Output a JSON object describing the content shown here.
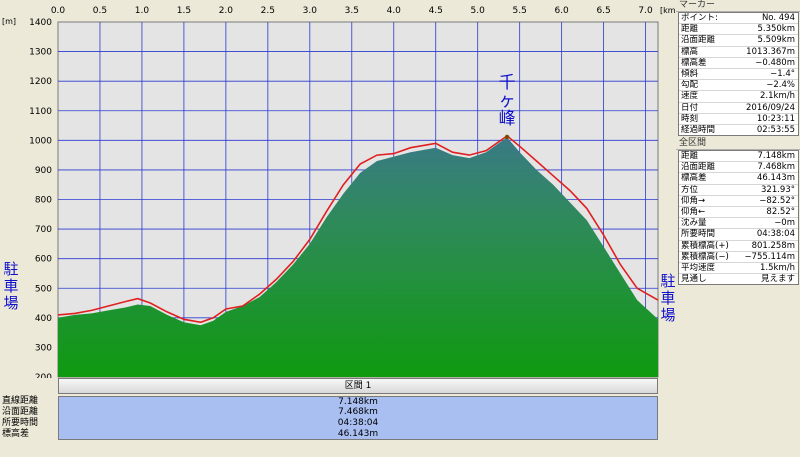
{
  "chart_data": {
    "type": "area",
    "x_unit": "[km]",
    "y_unit": "[m]",
    "xlim": [
      0,
      7.148
    ],
    "ylim": [
      200,
      1400
    ],
    "x_ticks": [
      "0.0",
      "0.5",
      "1.0",
      "1.5",
      "2.0",
      "2.5",
      "3.0",
      "3.5",
      "4.0",
      "4.5",
      "5.0",
      "5.5",
      "6.0",
      "6.5",
      "7.0"
    ],
    "x_tick_values": [
      0,
      0.5,
      1.0,
      1.5,
      2.0,
      2.5,
      3.0,
      3.5,
      4.0,
      4.5,
      5.0,
      5.5,
      6.0,
      6.5,
      7.0
    ],
    "y_ticks": [
      "200",
      "300",
      "400",
      "500",
      "600",
      "700",
      "800",
      "900",
      "1000",
      "1100",
      "1200",
      "1300",
      "1400"
    ],
    "y_tick_values": [
      200,
      300,
      400,
      500,
      600,
      700,
      800,
      900,
      1000,
      1100,
      1200,
      1300,
      1400
    ],
    "grid": true,
    "series": [
      {
        "role": "terrain",
        "x": [
          0,
          0.2,
          0.4,
          0.6,
          0.8,
          0.95,
          1.1,
          1.3,
          1.5,
          1.7,
          1.85,
          2.0,
          2.2,
          2.4,
          2.6,
          2.8,
          3.0,
          3.2,
          3.4,
          3.6,
          3.8,
          4.0,
          4.2,
          4.4,
          4.5,
          4.7,
          4.9,
          5.1,
          5.3,
          5.35,
          5.5,
          5.7,
          5.9,
          6.1,
          6.3,
          6.5,
          6.7,
          6.9,
          7.148
        ],
        "y": [
          400,
          410,
          415,
          425,
          435,
          445,
          440,
          410,
          385,
          375,
          390,
          420,
          440,
          470,
          520,
          580,
          650,
          740,
          820,
          890,
          930,
          945,
          960,
          970,
          975,
          950,
          940,
          960,
          1000,
          1010,
          960,
          900,
          850,
          790,
          730,
          640,
          550,
          460,
          395
        ]
      },
      {
        "role": "gps-track",
        "color": "#e02020",
        "x": [
          0,
          0.2,
          0.4,
          0.6,
          0.8,
          0.95,
          1.1,
          1.3,
          1.5,
          1.7,
          1.85,
          2.0,
          2.2,
          2.4,
          2.6,
          2.8,
          3.0,
          3.2,
          3.4,
          3.6,
          3.8,
          4.0,
          4.2,
          4.4,
          4.5,
          4.7,
          4.9,
          5.1,
          5.3,
          5.35,
          5.5,
          5.7,
          5.9,
          6.1,
          6.3,
          6.5,
          6.7,
          6.9,
          7.148
        ],
        "y": [
          410,
          415,
          425,
          440,
          455,
          465,
          450,
          420,
          395,
          385,
          400,
          430,
          440,
          480,
          530,
          590,
          665,
          760,
          850,
          920,
          950,
          955,
          975,
          985,
          990,
          960,
          950,
          965,
          1005,
          1015,
          980,
          930,
          880,
          830,
          770,
          680,
          580,
          500,
          460
        ]
      }
    ],
    "annotations": [
      {
        "text": "千ヶ峰",
        "x": 5.35,
        "role": "peak"
      },
      {
        "text": "駐車場",
        "role": "start"
      },
      {
        "text": "駐車場",
        "role": "end"
      }
    ],
    "colors": {
      "fill": "#1a9a1a",
      "track": "#e02020",
      "plot_bg": "#e4e4e4",
      "grid": "#2a3ad0",
      "label": "#1010cc"
    }
  },
  "section": {
    "title": "区間 1",
    "rows": [
      {
        "label": "直線距離",
        "value": "7.148km"
      },
      {
        "label": "沿面距離",
        "value": "7.468km"
      },
      {
        "label": "所要時間",
        "value": "04:38:04"
      },
      {
        "label": "標高差",
        "value": "46.143m"
      }
    ]
  },
  "marker_panel": {
    "title": "マーカー",
    "rows": [
      {
        "label": "ポイント:",
        "value": "No. 494"
      },
      {
        "label": "距離",
        "value": "5.350km"
      },
      {
        "label": "沿面距離",
        "value": "5.509km"
      },
      {
        "label": "標高",
        "value": "1013.367m"
      },
      {
        "label": "標高差",
        "value": "−0.480m"
      },
      {
        "label": "傾斜",
        "value": "−1.4°"
      },
      {
        "label": "勾配",
        "value": "−2.4%"
      },
      {
        "label": "速度",
        "value": "2.1km/h"
      },
      {
        "label": "日付",
        "value": "2016/09/24"
      },
      {
        "label": "時刻",
        "value": "10:23:11"
      },
      {
        "label": "経過時間",
        "value": "02:53:55"
      }
    ]
  },
  "total_panel": {
    "title": "全区間",
    "rows": [
      {
        "label": "距離",
        "value": "7.148km"
      },
      {
        "label": "沿面距離",
        "value": "7.468km"
      },
      {
        "label": "標高差",
        "value": "46.143m"
      },
      {
        "label": "方位",
        "value": "321.93°"
      },
      {
        "label": "仰角→",
        "value": "−82.52°"
      },
      {
        "label": "仰角←",
        "value": "82.52°"
      },
      {
        "label": "沈み量",
        "value": "−0m"
      },
      {
        "label": "所要時間",
        "value": "04:38:04"
      },
      {
        "label": "累積標高(+)",
        "value": "801.258m"
      },
      {
        "label": "累積標高(−)",
        "value": "−755.114m"
      },
      {
        "label": "平均速度",
        "value": "1.5km/h"
      },
      {
        "label": "見通し",
        "value": "見えます"
      }
    ]
  }
}
